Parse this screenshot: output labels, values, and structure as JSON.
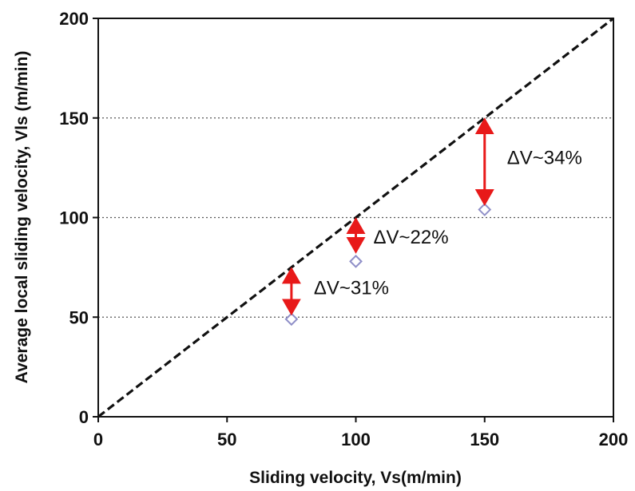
{
  "chart_data": {
    "type": "scatter",
    "title": "",
    "xlabel": "Sliding velocity, Vs(m/min)",
    "ylabel": "Average local sliding velocity, Vls (m/min)",
    "xlim": [
      0,
      200
    ],
    "ylim": [
      0,
      200
    ],
    "x_ticks": [
      0,
      50,
      100,
      150,
      200
    ],
    "y_ticks": [
      0,
      50,
      100,
      150,
      200
    ],
    "grid": "horizontal dotted",
    "series": [
      {
        "marker": "open-diamond",
        "x": [
          75,
          100,
          150
        ],
        "y": [
          49,
          78,
          104
        ]
      }
    ],
    "reference_line": {
      "style": "dashed",
      "x": [
        0,
        200
      ],
      "y": [
        0,
        200
      ]
    },
    "annotations": [
      {
        "text": "ΔV~31%",
        "x": 75,
        "y_from": 74,
        "y_to": 52
      },
      {
        "text": "ΔV~22%",
        "x": 100,
        "y_from": 99,
        "y_to": 83
      },
      {
        "text": "ΔV~34%",
        "x": 150,
        "y_from": 149,
        "y_to": 107
      }
    ],
    "colors": {
      "marker": "#8f8fc8",
      "arrow": "#e81919",
      "line": "#111111"
    }
  }
}
